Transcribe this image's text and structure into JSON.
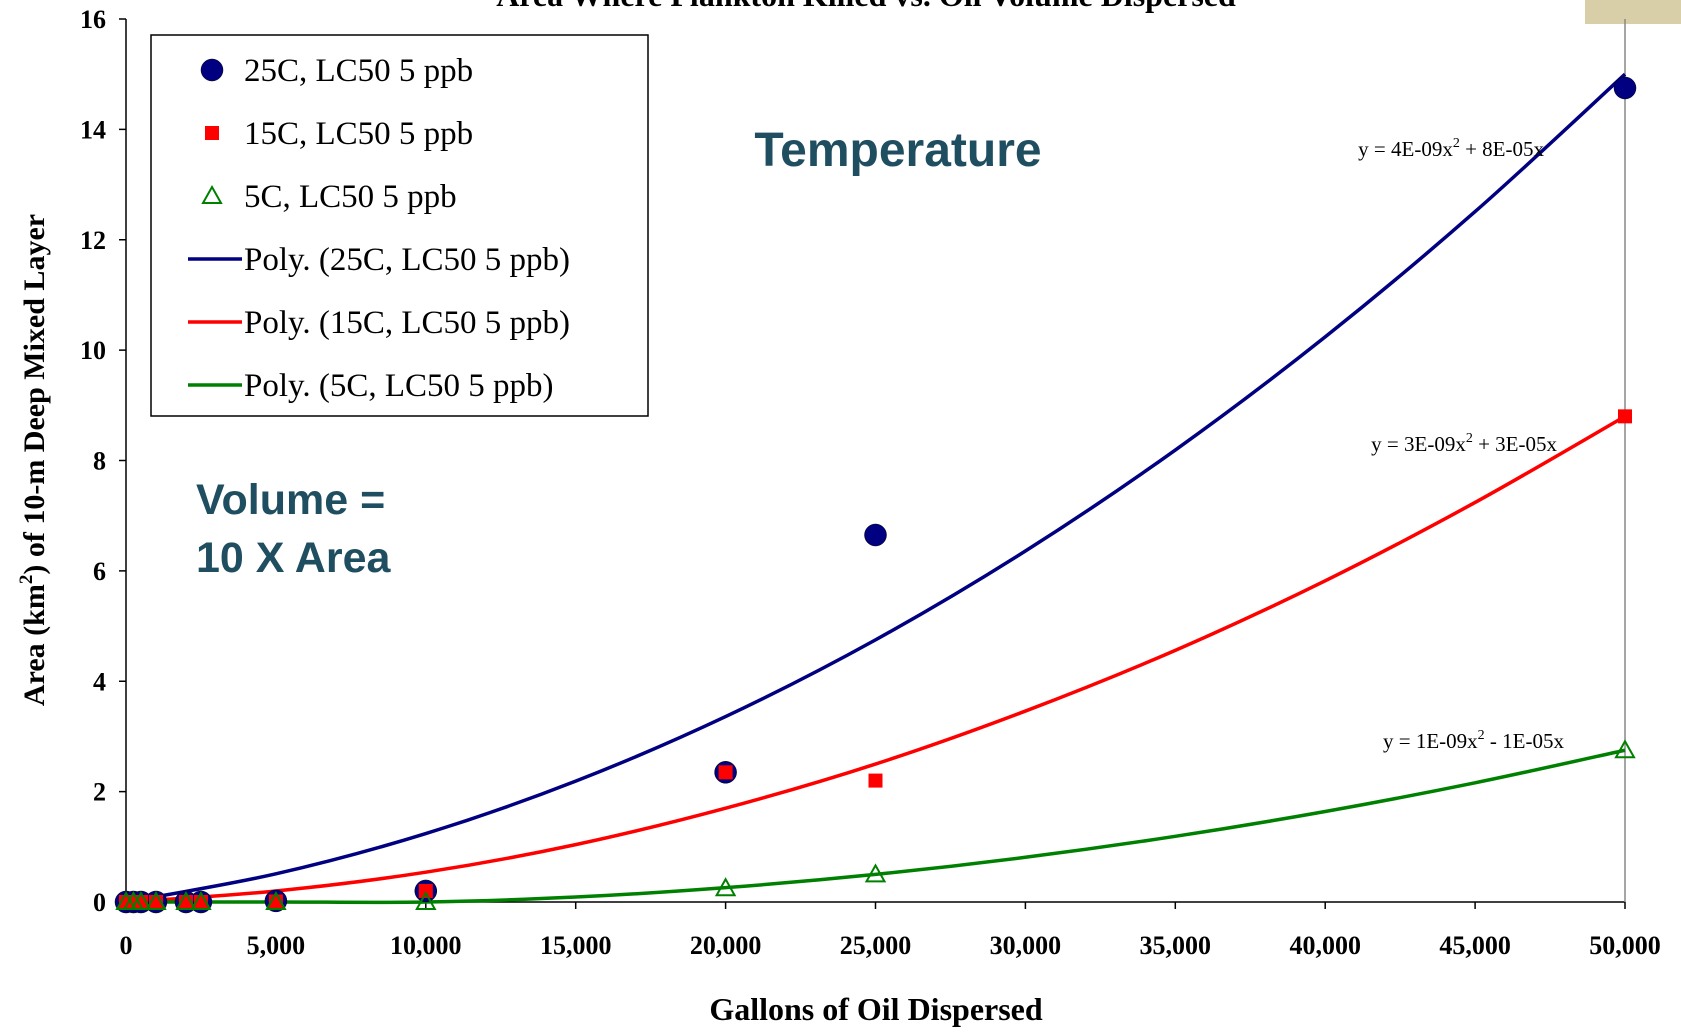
{
  "chart_data": {
    "type": "scatter",
    "title": "Area Where Plankton Killed vs. Oil Volume Dispersed",
    "xlabel": "Gallons of Oil Dispersed",
    "ylabel": [
      "Area (km",
      "2",
      ") of 10-m Deep Mixed Layer"
    ],
    "xlim": [
      0,
      50000
    ],
    "ylim": [
      0,
      16
    ],
    "xticks": [
      0,
      {
        "value": 5000,
        "label": "5,000"
      },
      {
        "value": 10000,
        "label": "10,000"
      },
      {
        "value": 15000,
        "label": "15,000"
      },
      {
        "value": 20000,
        "label": "20,000"
      },
      {
        "value": 25000,
        "label": "25,000"
      },
      {
        "value": 30000,
        "label": "30,000"
      },
      {
        "value": 35000,
        "label": "35,000"
      },
      {
        "value": 40000,
        "label": "40,000"
      },
      {
        "value": 45000,
        "label": "45,000"
      },
      {
        "value": 50000,
        "label": "50,000"
      }
    ],
    "yticks": [
      0,
      2,
      4,
      6,
      8,
      10,
      12,
      14,
      16
    ],
    "series": [
      {
        "name": "25C, LC50 5 ppb",
        "color": "#000080",
        "marker": "circle",
        "x": [
          0,
          250,
          500,
          1000,
          2000,
          2500,
          5000,
          10000,
          20000,
          25000,
          50000
        ],
        "values": [
          0,
          0,
          0,
          0,
          0,
          0,
          0.02,
          0.2,
          2.35,
          6.65,
          14.75
        ]
      },
      {
        "name": "15C, LC50 5 ppb",
        "color": "#ff0000",
        "marker": "square",
        "x": [
          0,
          250,
          500,
          1000,
          2000,
          2500,
          5000,
          10000,
          20000,
          25000,
          50000
        ],
        "values": [
          0,
          0,
          0,
          0,
          0,
          0,
          0.01,
          0.2,
          2.35,
          2.2,
          8.8
        ]
      },
      {
        "name": "5C, LC50 5 ppb",
        "color": "#008000",
        "marker": "triangle",
        "x": [
          0,
          250,
          500,
          1000,
          2000,
          2500,
          5000,
          10000,
          20000,
          25000,
          50000
        ],
        "values": [
          0,
          0,
          0,
          0,
          0,
          0,
          0,
          0,
          0.25,
          0.5,
          2.75
        ]
      }
    ],
    "trendlines": [
      {
        "name": "Poly. (25C, LC50 5 ppb)",
        "color": "#000080",
        "x": [
          0,
          5000,
          10000,
          15000,
          20000,
          25000,
          30000,
          35000,
          40000,
          45000,
          50000
        ],
        "values": [
          0,
          0.51,
          1.24,
          2.19,
          3.36,
          4.75,
          6.36,
          8.19,
          10.24,
          12.51,
          15
        ],
        "equation": [
          "y = 4E-09x",
          "2",
          " + 8E-05x"
        ]
      },
      {
        "name": "Poly. (15C, LC50 5 ppb)",
        "color": "#ff0000",
        "x": [
          0,
          5000,
          10000,
          15000,
          20000,
          25000,
          30000,
          35000,
          40000,
          45000,
          50000
        ],
        "values": [
          0,
          0.2,
          0.54,
          1.04,
          1.7,
          2.5,
          3.46,
          4.56,
          5.82,
          7.24,
          8.8
        ],
        "equation": [
          "y = 3E-09x",
          "2",
          " + 3E-05x"
        ]
      },
      {
        "name": "Poly. (5C, LC50 5 ppb)",
        "color": "#008000",
        "x": [
          0,
          5000,
          10000,
          15000,
          20000,
          25000,
          30000,
          35000,
          40000,
          45000,
          50000
        ],
        "values": [
          0,
          0,
          0,
          0.09,
          0.26,
          0.5,
          0.81,
          1.19,
          1.64,
          2.16,
          2.75
        ],
        "equation": [
          "y = 1E-09x",
          "2",
          " - 1E-05x"
        ]
      }
    ],
    "annotations": [
      "Temperature",
      "Volume =",
      "10 X Area"
    ]
  }
}
